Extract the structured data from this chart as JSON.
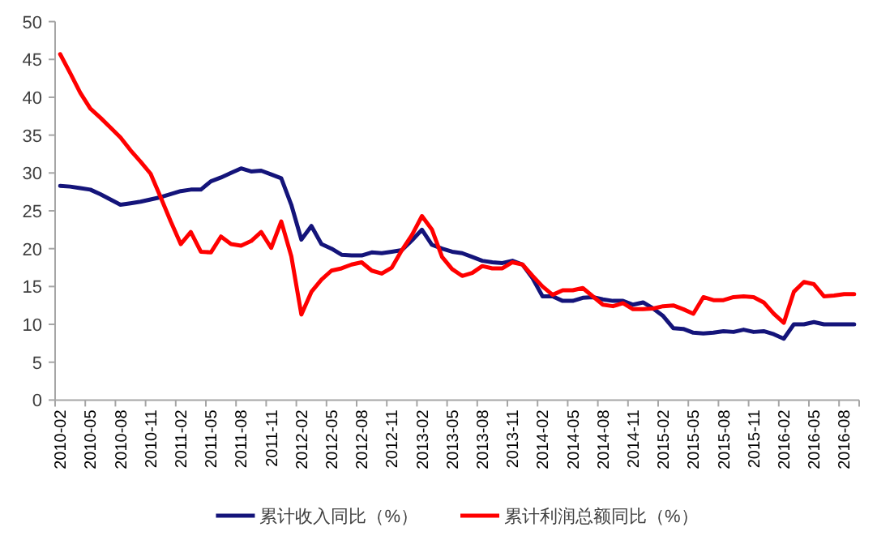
{
  "chart_data": {
    "type": "line",
    "categories": [
      "2010-02",
      null,
      null,
      "2010-05",
      null,
      null,
      "2010-08",
      null,
      null,
      "2010-11",
      null,
      null,
      "2011-02",
      null,
      null,
      "2011-05",
      null,
      null,
      "2011-08",
      null,
      null,
      "2011-11",
      null,
      null,
      "2012-02",
      null,
      null,
      "2012-05",
      null,
      null,
      "2012-08",
      null,
      null,
      "2012-11",
      null,
      null,
      "2013-02",
      null,
      null,
      "2013-05",
      null,
      null,
      "2013-08",
      null,
      null,
      "2013-11",
      null,
      null,
      "2014-02",
      null,
      null,
      "2014-05",
      null,
      null,
      "2014-08",
      null,
      null,
      "2014-11",
      null,
      null,
      "2015-02",
      null,
      null,
      "2015-05",
      null,
      null,
      "2015-08",
      null,
      null,
      "2015-11",
      null,
      null,
      "2016-02",
      null,
      null,
      "2016-05",
      null,
      null,
      "2016-08",
      null
    ],
    "ylim": [
      0,
      50
    ],
    "yticks": [
      0,
      5,
      10,
      15,
      20,
      25,
      30,
      35,
      40,
      45,
      50
    ],
    "legend": "bottom",
    "series": [
      {
        "name": "累计收入同比（%）",
        "color": "#14147a",
        "values": [
          28.3,
          28.2,
          28.0,
          27.8,
          27.2,
          26.5,
          25.8,
          26.0,
          26.2,
          26.5,
          26.8,
          27.2,
          27.6,
          27.8,
          27.8,
          28.9,
          29.4,
          30.0,
          30.6,
          30.2,
          30.3,
          29.8,
          29.3,
          25.8,
          21.2,
          23.0,
          20.6,
          20.0,
          19.2,
          19.1,
          19.1,
          19.5,
          19.4,
          19.6,
          19.8,
          21.1,
          22.5,
          20.5,
          20.0,
          19.6,
          19.4,
          18.9,
          18.4,
          18.2,
          18.1,
          18.4,
          17.9,
          16.1,
          13.7,
          13.7,
          13.1,
          13.1,
          13.5,
          13.6,
          13.3,
          13.1,
          13.1,
          12.6,
          12.9,
          12.1,
          11.1,
          9.5,
          9.4,
          8.9,
          8.8,
          8.9,
          9.1,
          9.0,
          9.3,
          9.0,
          9.1,
          8.7,
          8.1,
          10.0,
          10.0,
          10.3,
          10.0,
          10.0,
          10.0,
          10.0
        ]
      },
      {
        "name": "累计利润总额同比（%）",
        "color": "#ff0000",
        "values": [
          45.7,
          43.2,
          40.6,
          38.5,
          37.3,
          36.0,
          34.7,
          33.0,
          31.5,
          29.9,
          26.8,
          23.6,
          20.6,
          22.2,
          19.6,
          19.5,
          21.6,
          20.6,
          20.4,
          21.0,
          22.2,
          20.1,
          23.6,
          19.0,
          11.3,
          14.3,
          15.9,
          17.1,
          17.4,
          17.9,
          18.2,
          17.1,
          16.7,
          17.5,
          19.8,
          21.8,
          24.3,
          22.5,
          18.9,
          17.3,
          16.4,
          16.8,
          17.7,
          17.4,
          17.4,
          18.2,
          17.9,
          16.4,
          15.0,
          13.9,
          14.5,
          14.5,
          14.8,
          13.7,
          12.6,
          12.4,
          12.8,
          12.0,
          12.0,
          12.1,
          12.4,
          12.5,
          12.0,
          11.4,
          13.6,
          13.2,
          13.2,
          13.6,
          13.7,
          13.6,
          12.9,
          11.4,
          10.2,
          14.3,
          15.6,
          15.3,
          13.7,
          13.8,
          14.0,
          14.0
        ]
      }
    ]
  }
}
